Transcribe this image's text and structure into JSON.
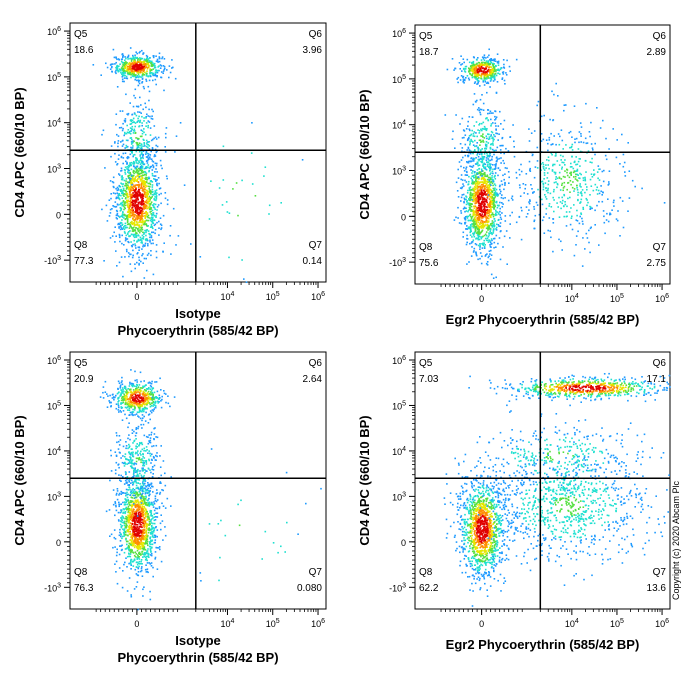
{
  "chart_data": [
    {
      "type": "scatter",
      "subtype": "flow-cytometry-density-dot-plot",
      "xlabel_lines": [
        "Isotype",
        "Phycoerythrin (585/42 BP)"
      ],
      "ylabel": "CD4 APC (660/10 BP)",
      "x_scale": "biexponential",
      "y_scale": "biexponential",
      "x_ticks": [
        "0",
        "10^4",
        "10^5",
        "10^6"
      ],
      "y_ticks": [
        "-10^3",
        "0",
        "10^3",
        "10^4",
        "10^5",
        "10^6"
      ],
      "gate": {
        "x": 2000,
        "y": 2500
      },
      "quadrants": [
        {
          "name": "Q5",
          "value": "18.6"
        },
        {
          "name": "Q6",
          "value": "3.96"
        },
        {
          "name": "Q8",
          "value": "77.3"
        },
        {
          "name": "Q7",
          "value": "0.14"
        }
      ],
      "populations": [
        {
          "label": "CD4+ high",
          "x_center": 0,
          "y_center": 170000
        },
        {
          "label": "CD4 low / negative",
          "x_center": 0,
          "y_center": 300
        }
      ]
    },
    {
      "type": "scatter",
      "subtype": "flow-cytometry-density-dot-plot",
      "xlabel_lines": [
        "Egr2 Phycoerythrin (585/42 BP)"
      ],
      "ylabel": "CD4 APC (660/10 BP)",
      "x_scale": "biexponential",
      "y_scale": "biexponential",
      "x_ticks": [
        "0",
        "10^4",
        "10^5",
        "10^6"
      ],
      "y_ticks": [
        "-10^3",
        "0",
        "10^3",
        "10^4",
        "10^5",
        "10^6"
      ],
      "gate": {
        "x": 2000,
        "y": 2500
      },
      "quadrants": [
        {
          "name": "Q5",
          "value": "18.7"
        },
        {
          "name": "Q6",
          "value": "2.89"
        },
        {
          "name": "Q8",
          "value": "75.6"
        },
        {
          "name": "Q7",
          "value": "2.75"
        }
      ],
      "populations": [
        {
          "label": "CD4+ high",
          "x_center": 0,
          "y_center": 160000
        },
        {
          "label": "CD4 low / negative",
          "x_center": 0,
          "y_center": 300
        }
      ]
    },
    {
      "type": "scatter",
      "subtype": "flow-cytometry-density-dot-plot",
      "xlabel_lines": [
        "Isotype",
        "Phycoerythrin (585/42 BP)"
      ],
      "ylabel": "CD4 APC (660/10 BP)",
      "x_scale": "biexponential",
      "y_scale": "biexponential",
      "x_ticks": [
        "0",
        "10^4",
        "10^5",
        "10^6"
      ],
      "y_ticks": [
        "-10^3",
        "0",
        "10^3",
        "10^4",
        "10^5",
        "10^6"
      ],
      "gate": {
        "x": 2000,
        "y": 2500
      },
      "quadrants": [
        {
          "name": "Q5",
          "value": "20.9"
        },
        {
          "name": "Q6",
          "value": "2.64"
        },
        {
          "name": "Q8",
          "value": "76.3"
        },
        {
          "name": "Q7",
          "value": "0.080"
        }
      ],
      "populations": [
        {
          "label": "CD4+ high",
          "x_center": 0,
          "y_center": 150000
        },
        {
          "label": "CD4 low / negative",
          "x_center": 0,
          "y_center": 400
        }
      ]
    },
    {
      "type": "scatter",
      "subtype": "flow-cytometry-density-dot-plot",
      "xlabel_lines": [
        "Egr2 Phycoerythrin (585/42 BP)"
      ],
      "ylabel": "CD4 APC (660/10 BP)",
      "x_scale": "biexponential",
      "y_scale": "biexponential",
      "x_ticks": [
        "0",
        "10^4",
        "10^5",
        "10^6"
      ],
      "y_ticks": [
        "-10^3",
        "0",
        "10^3",
        "10^4",
        "10^5",
        "10^6"
      ],
      "gate": {
        "x": 2000,
        "y": 2500
      },
      "quadrants": [
        {
          "name": "Q5",
          "value": "7.03"
        },
        {
          "name": "Q6",
          "value": "17.1"
        },
        {
          "name": "Q8",
          "value": "62.2"
        },
        {
          "name": "Q7",
          "value": "13.6"
        }
      ],
      "populations": [
        {
          "label": "CD4+ Egr2 spread",
          "x_center": 20000,
          "y_center": 250000
        },
        {
          "label": "CD4 low / negative",
          "x_center": 0,
          "y_center": 300
        }
      ]
    }
  ],
  "copyright": "Copyright (c) 2020 Abcam Plc"
}
